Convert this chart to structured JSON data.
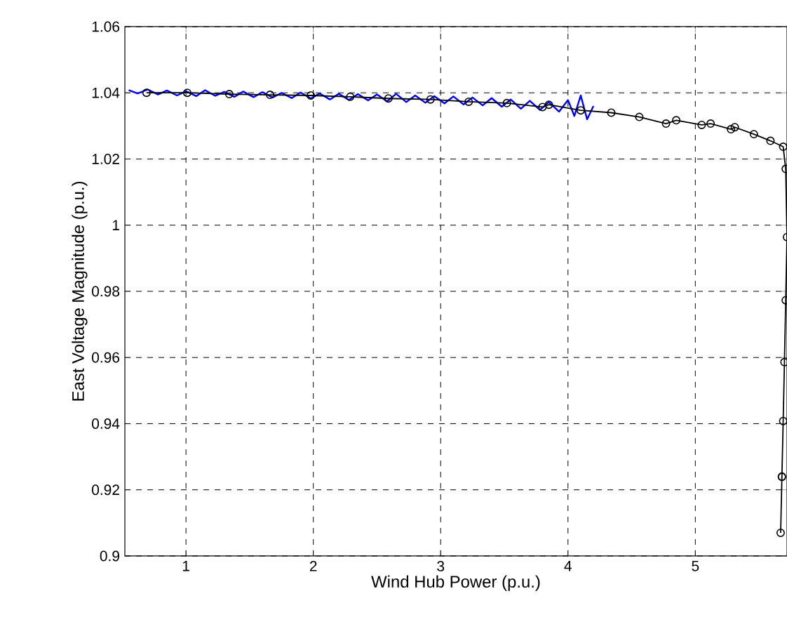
{
  "chart_data": {
    "type": "line",
    "xlabel": "Wind Hub Power (p.u.)",
    "ylabel": "East Voltage Magnitude (p.u.)",
    "xlim": [
      0.52,
      5.72
    ],
    "ylim": [
      0.9,
      1.06
    ],
    "xticks": [
      1,
      2,
      3,
      4,
      5
    ],
    "yticks": [
      0.9,
      0.92,
      0.94,
      0.96,
      0.98,
      1,
      1.02,
      1.04,
      1.06
    ],
    "grid": true,
    "series": [
      {
        "color": "#0000ff",
        "marker": "none",
        "line_style": "solid",
        "x": [
          0.55,
          0.62,
          0.7,
          0.78,
          0.85,
          0.93,
          1.0,
          1.08,
          1.15,
          1.23,
          1.3,
          1.38,
          1.45,
          1.53,
          1.6,
          1.68,
          1.75,
          1.83,
          1.9,
          1.98,
          2.05,
          2.13,
          2.2,
          2.28,
          2.35,
          2.43,
          2.5,
          2.58,
          2.65,
          2.73,
          2.8,
          2.88,
          2.95,
          3.03,
          3.1,
          3.18,
          3.25,
          3.33,
          3.4,
          3.48,
          3.55,
          3.63,
          3.7,
          3.78,
          3.85,
          3.93,
          4.0,
          4.05,
          4.1,
          4.15,
          4.2
        ],
        "values": [
          1.0408,
          1.0398,
          1.041,
          1.0395,
          1.0407,
          1.0392,
          1.0405,
          1.039,
          1.0408,
          1.0391,
          1.0403,
          1.0388,
          1.0404,
          1.0387,
          1.0402,
          1.0386,
          1.04,
          1.0384,
          1.0401,
          1.0383,
          1.0398,
          1.038,
          1.0397,
          1.0378,
          1.0396,
          1.0377,
          1.0395,
          1.0374,
          1.0397,
          1.0372,
          1.0392,
          1.037,
          1.039,
          1.0368,
          1.0389,
          1.0365,
          1.0386,
          1.0362,
          1.0384,
          1.0358,
          1.038,
          1.0352,
          1.0376,
          1.0348,
          1.0372,
          1.0343,
          1.0378,
          1.033,
          1.0392,
          1.032,
          1.036
        ]
      },
      {
        "color": "#000000",
        "marker": "circle",
        "line_style": "solid",
        "x": [
          0.69,
          1.01,
          1.34,
          1.66,
          1.98,
          2.29,
          2.59,
          2.92,
          3.22,
          3.52,
          3.8,
          3.85,
          4.1,
          4.34,
          4.56,
          4.77,
          4.85,
          5.05,
          5.12,
          5.28,
          5.31,
          5.46,
          5.59,
          5.69,
          5.71,
          5.72,
          5.71,
          5.7,
          5.69,
          5.68,
          5.68,
          5.67
        ],
        "values": [
          1.04,
          1.04,
          1.0396,
          1.0394,
          1.0392,
          1.0388,
          1.0383,
          1.038,
          1.0373,
          1.0369,
          1.0357,
          1.0364,
          1.0347,
          1.034,
          1.0327,
          1.0307,
          1.0317,
          1.0303,
          1.0307,
          1.029,
          1.0296,
          1.0275,
          1.0255,
          1.0237,
          1.017,
          0.9964,
          0.9773,
          0.9586,
          0.9408,
          0.924,
          0.9239,
          0.907
        ]
      }
    ]
  }
}
